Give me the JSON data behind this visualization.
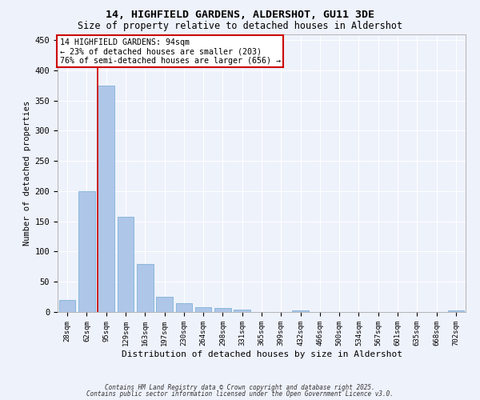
{
  "title1": "14, HIGHFIELD GARDENS, ALDERSHOT, GU11 3DE",
  "title2": "Size of property relative to detached houses in Aldershot",
  "xlabel": "Distribution of detached houses by size in Aldershot",
  "ylabel": "Number of detached properties",
  "categories": [
    "28sqm",
    "62sqm",
    "95sqm",
    "129sqm",
    "163sqm",
    "197sqm",
    "230sqm",
    "264sqm",
    "298sqm",
    "331sqm",
    "365sqm",
    "399sqm",
    "432sqm",
    "466sqm",
    "500sqm",
    "534sqm",
    "567sqm",
    "601sqm",
    "635sqm",
    "668sqm",
    "702sqm"
  ],
  "values": [
    20,
    200,
    375,
    158,
    80,
    25,
    15,
    8,
    6,
    4,
    0,
    0,
    3,
    0,
    0,
    0,
    0,
    0,
    0,
    0,
    2
  ],
  "bar_color": "#aec6e8",
  "bar_edgecolor": "#6faad4",
  "vline_x_index": 2,
  "vline_color": "#cc0000",
  "annotation_line1": "14 HIGHFIELD GARDENS: 94sqm",
  "annotation_line2": "← 23% of detached houses are smaller (203)",
  "annotation_line3": "76% of semi-detached houses are larger (656) →",
  "annotation_box_color": "#cc0000",
  "ylim": [
    0,
    460
  ],
  "yticks": [
    0,
    50,
    100,
    150,
    200,
    250,
    300,
    350,
    400,
    450
  ],
  "background_color": "#eef2fb",
  "grid_color": "#ffffff",
  "footnote1": "Contains HM Land Registry data © Crown copyright and database right 2025.",
  "footnote2": "Contains public sector information licensed under the Open Government Licence v3.0."
}
